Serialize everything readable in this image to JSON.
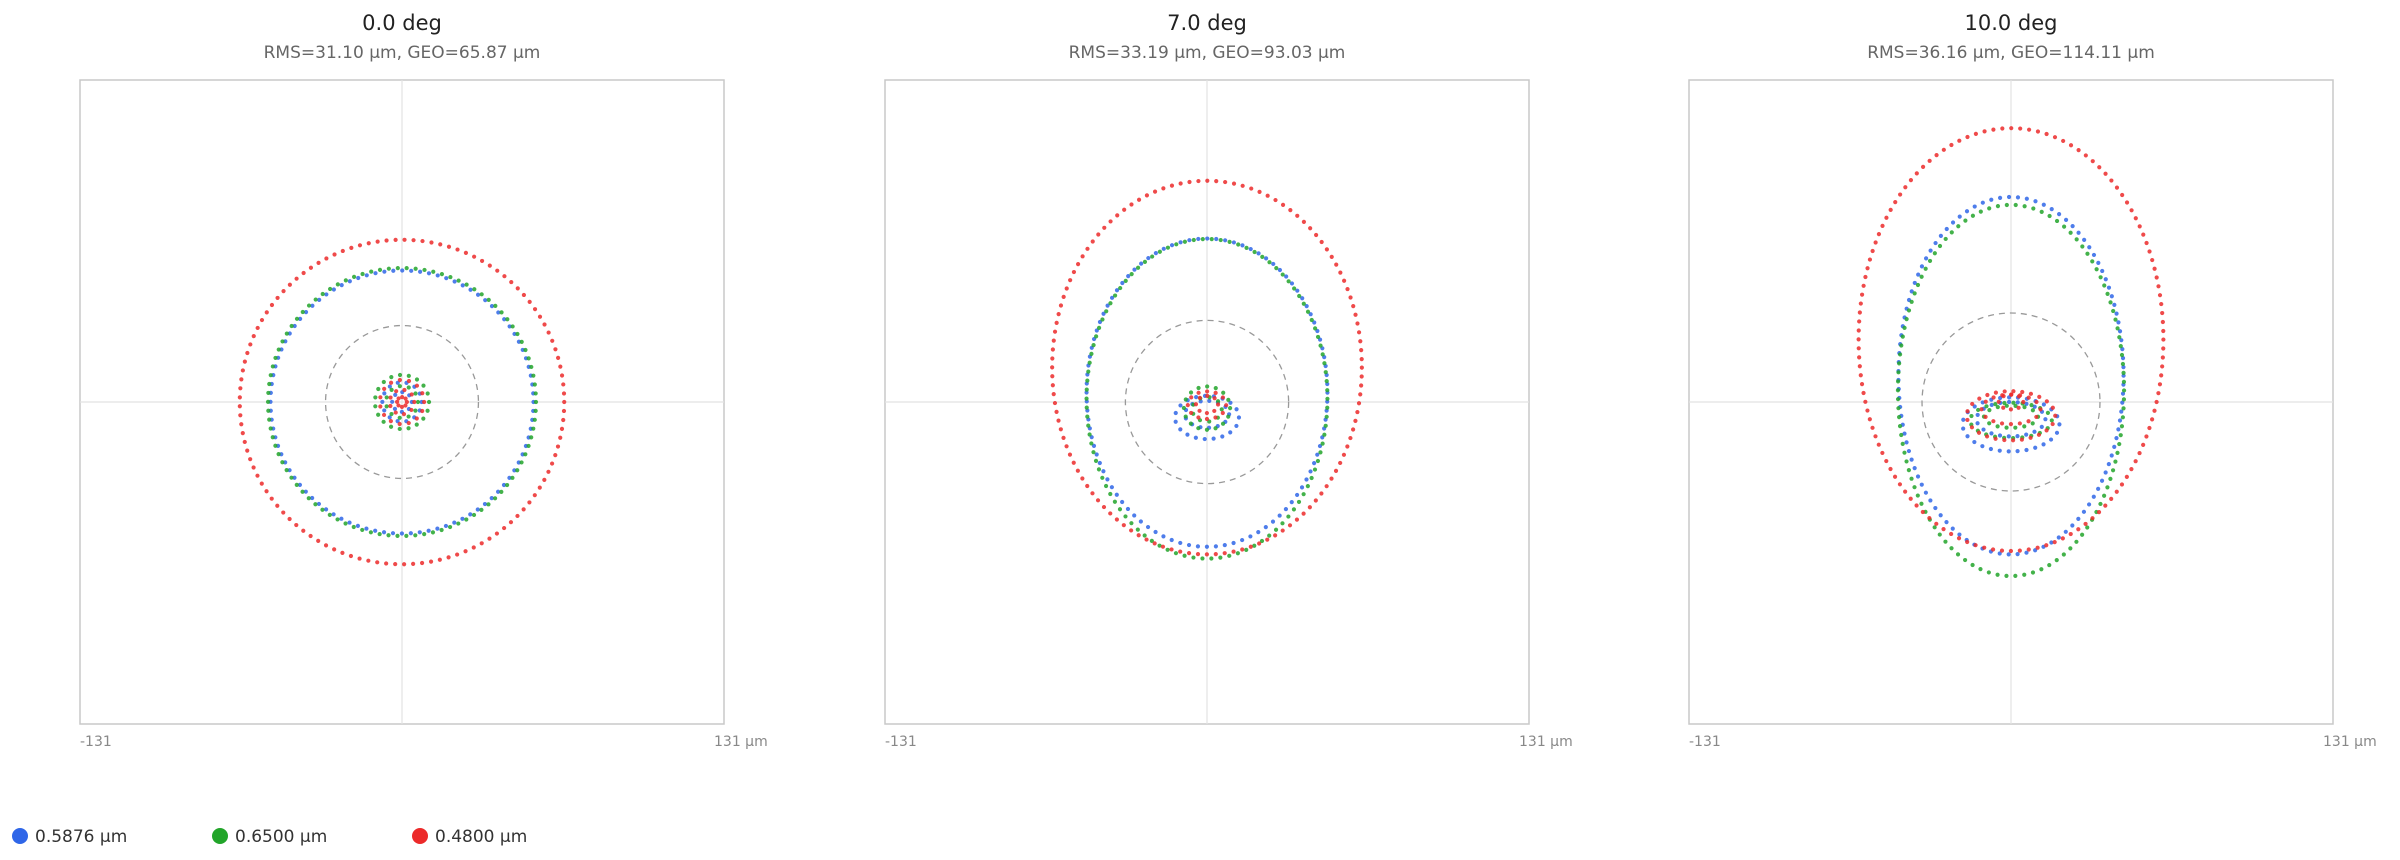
{
  "legend": [
    {
      "name": "0.5876 µm",
      "color": "#2f66e8"
    },
    {
      "name": "0.6500 µm",
      "color": "#22a52a"
    },
    {
      "name": "0.4800 µm",
      "color": "#ec2a2a"
    }
  ],
  "chart_data": [
    {
      "type": "spot",
      "title": "0.0 deg",
      "subtitle": "RMS=31.10 µm, GEO=65.87 µm",
      "rms_radius": 31.1,
      "xlim": [
        -131,
        131
      ],
      "ylim": [
        -131,
        131
      ],
      "xticks": [
        {
          "value": -131,
          "label": "-131"
        },
        {
          "value": 131,
          "label": "131 µm"
        }
      ],
      "series": [
        {
          "rings": [
            [
              0,
              0,
              53.5,
              53.5
            ],
            [
              0,
              0,
              8,
              8
            ],
            [
              0,
              0,
              4,
              4
            ]
          ]
        },
        {
          "rings": [
            [
              0,
              0,
              54.5,
              54.5
            ],
            [
              0,
              0,
              11,
              11
            ],
            [
              0,
              0,
              6.5,
              6.5
            ]
          ]
        },
        {
          "rings": [
            [
              0,
              0,
              66,
              66
            ],
            [
              0,
              0,
              9,
              9
            ],
            [
              0,
              0,
              5,
              5
            ],
            [
              0,
              0,
              2,
              2
            ]
          ]
        }
      ]
    },
    {
      "type": "spot",
      "title": "7.0 deg",
      "subtitle": "RMS=33.19 µm, GEO=93.03 µm",
      "rms_radius": 33.2,
      "xlim": [
        -131,
        131
      ],
      "ylim": [
        -131,
        131
      ],
      "xticks": [
        {
          "value": -131,
          "label": "-131"
        },
        {
          "value": 131,
          "label": "131 µm"
        }
      ],
      "series": [
        {
          "rings": [
            [
              0,
              3.8,
              49,
              62.7
            ],
            [
              0,
              -6.3,
              13,
              8.8
            ],
            [
              0,
              -5,
              9,
              5.5
            ]
          ]
        },
        {
          "rings": [
            [
              0,
              1.3,
              49,
              65
            ],
            [
              0,
              -2.5,
              9.4,
              8.8
            ],
            [
              0,
              -3,
              6,
              5
            ]
          ]
        },
        {
          "rings": [
            [
              0,
              14,
              63,
              76
            ],
            [
              0,
              -1.3,
              7.8,
              5.6
            ],
            [
              0,
              -1,
              4.5,
              3.5
            ]
          ]
        }
      ]
    },
    {
      "type": "spot",
      "title": "10.0 deg",
      "subtitle": "RMS=36.16 µm, GEO=114.11 µm",
      "rms_radius": 36.2,
      "xlim": [
        -131,
        131
      ],
      "ylim": [
        -131,
        131
      ],
      "xticks": [
        {
          "value": -131,
          "label": "-131"
        },
        {
          "value": 131,
          "label": "131 µm"
        }
      ],
      "series": [
        {
          "rings": [
            [
              0,
              10.7,
              45.8,
              72.7
            ],
            [
              0,
              -9.1,
              19.7,
              11
            ],
            [
              0,
              -7,
              14,
              7
            ]
          ]
        },
        {
          "rings": [
            [
              0,
              4.7,
              46,
              75.5
            ],
            [
              0,
              -7.5,
              16.6,
              7.2
            ],
            [
              0,
              -6,
              11,
              4.5
            ]
          ]
        },
        {
          "rings": [
            [
              0,
              25.4,
              62,
              86
            ],
            [
              0,
              -5.6,
              18,
              10
            ],
            [
              0,
              -3,
              12,
              6
            ],
            [
              0,
              0,
              5,
              3
            ]
          ]
        }
      ]
    }
  ]
}
